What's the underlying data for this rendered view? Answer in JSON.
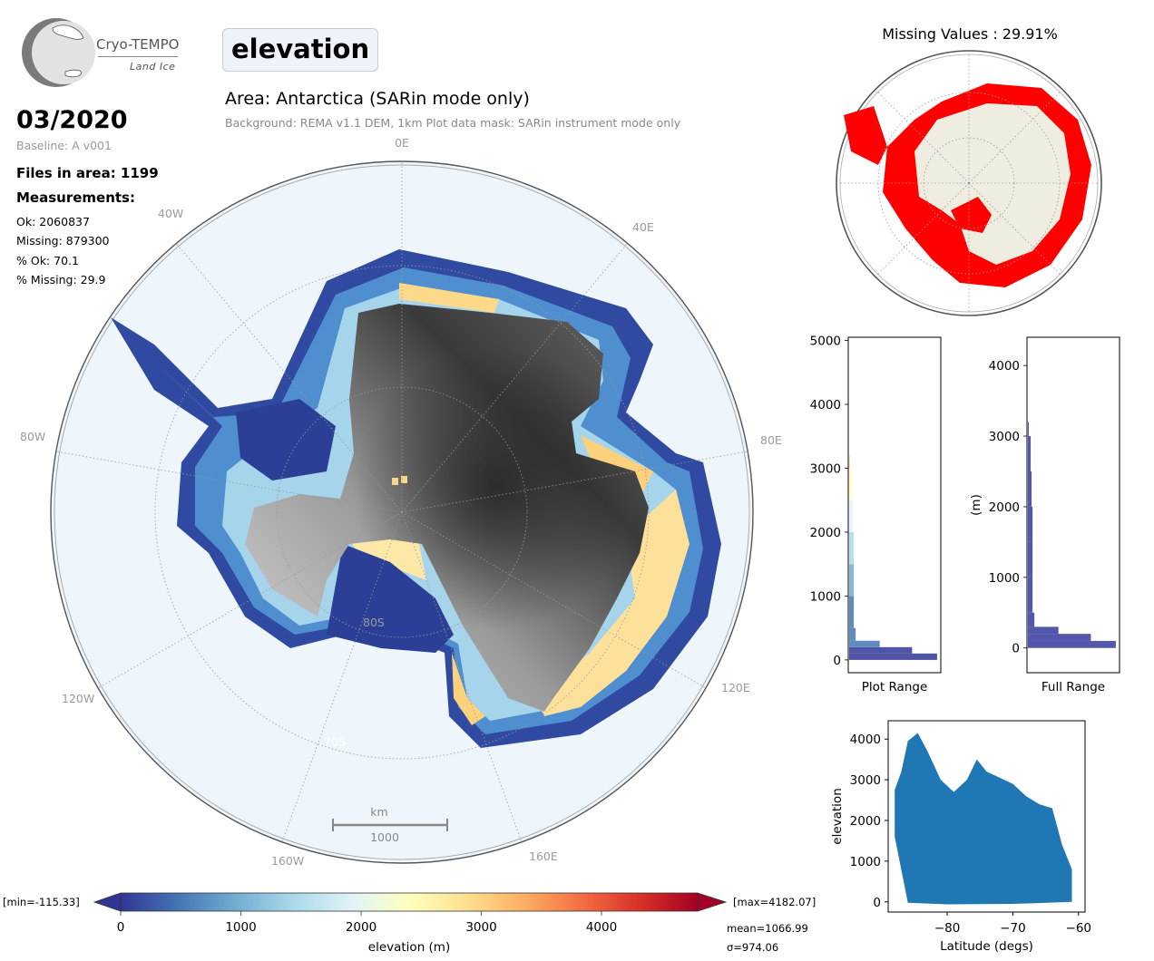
{
  "logo": {
    "title": "Cryo-TEMPO",
    "subtitle": "Land Ice"
  },
  "variable": "elevation",
  "area_title": "Area: Antarctica (SARin mode only)",
  "area_subtitle": "Background: REMA v1.1 DEM, 1km   Plot data mask: SARin instrument mode only",
  "date": "03/2020",
  "baseline": "Baseline: A v001",
  "files": "Files in area: 1199",
  "measurements_header": "Measurements:",
  "stats": {
    "ok": "Ok: 2060837",
    "missing": "Missing: 879300",
    "pct_ok": "% Ok: 70.1",
    "pct_missing": "% Missing: 29.9"
  },
  "missing_title": "Missing Values : 29.91%",
  "map_labels": {
    "lon_0": "0E",
    "lon_40e": "40E",
    "lon_80e": "80E",
    "lon_120e": "120E",
    "lon_160e": "160E",
    "lon_40w": "40W",
    "lon_80w": "80W",
    "lon_120w": "120W",
    "lon_160w": "160W",
    "lat_80s": "80S",
    "lat_70s": "70S"
  },
  "scalebar": {
    "unit": "km",
    "value": "1000"
  },
  "colorbar": {
    "label": "elevation (m)",
    "ticks": [
      "0",
      "1000",
      "2000",
      "3000",
      "4000"
    ],
    "min_label": "[min=-115.33]",
    "max_label": "[max=4182.07]",
    "mean_label": "mean=1066.99",
    "sigma_label": "σ=974.06",
    "colors": [
      "#313695",
      "#4575b4",
      "#74add1",
      "#abd9e9",
      "#e0f3f8",
      "#ffffbf",
      "#fee090",
      "#fdae61",
      "#f46d43",
      "#d73027",
      "#a50026"
    ]
  },
  "chart_data": [
    {
      "type": "histogram",
      "name": "plot-range-histogram",
      "xlabel": "Plot Range",
      "yticks": [
        "0",
        "1000",
        "2000",
        "3000",
        "4000",
        "5000"
      ],
      "ylim": [
        -200,
        5050
      ],
      "bins": [
        {
          "y": 0,
          "count": 0.95
        },
        {
          "y": 100,
          "count": 0.68
        },
        {
          "y": 200,
          "count": 0.33
        },
        {
          "y": 300,
          "count": 0.07
        },
        {
          "y": 500,
          "count": 0.05
        },
        {
          "y": 1000,
          "count": 0.05
        },
        {
          "y": 1500,
          "count": 0.05
        },
        {
          "y": 2000,
          "count": 0.04
        },
        {
          "y": 2500,
          "count": 0.03
        },
        {
          "y": 3000,
          "count": 0.01
        }
      ]
    },
    {
      "type": "histogram",
      "name": "full-range-histogram",
      "xlabel": "Full Range",
      "ylabel": "(m)",
      "yticks": [
        "0",
        "1000",
        "2000",
        "3000",
        "4000"
      ],
      "ylim": [
        -350,
        4400
      ],
      "bins": [
        {
          "y": 0,
          "count": 0.95
        },
        {
          "y": 100,
          "count": 0.68
        },
        {
          "y": 200,
          "count": 0.33
        },
        {
          "y": 300,
          "count": 0.07
        },
        {
          "y": 500,
          "count": 0.05
        },
        {
          "y": 1000,
          "count": 0.05
        },
        {
          "y": 1500,
          "count": 0.05
        },
        {
          "y": 2000,
          "count": 0.04
        },
        {
          "y": 2500,
          "count": 0.03
        },
        {
          "y": 3000,
          "count": 0.01
        }
      ]
    },
    {
      "type": "scatter",
      "name": "elevation-vs-latitude",
      "xlabel": "Latitude (degs)",
      "ylabel": "elevation",
      "xticks": [
        "−80",
        "−70",
        "−60"
      ],
      "yticks": [
        "0",
        "1000",
        "2000",
        "3000",
        "4000"
      ],
      "xlim": [
        -89,
        -59
      ],
      "ylim": [
        -250,
        4450
      ],
      "color": "#1f77b4",
      "envelope_upper": [
        [
          -88,
          2750
        ],
        [
          -87,
          3200
        ],
        [
          -86,
          3950
        ],
        [
          -84.5,
          4150
        ],
        [
          -83,
          3700
        ],
        [
          -81,
          3000
        ],
        [
          -79,
          2700
        ],
        [
          -77,
          3000
        ],
        [
          -75.5,
          3500
        ],
        [
          -74,
          3200
        ],
        [
          -72,
          3050
        ],
        [
          -70,
          2900
        ],
        [
          -68,
          2600
        ],
        [
          -66,
          2400
        ],
        [
          -64,
          2300
        ],
        [
          -62.5,
          1400
        ],
        [
          -61,
          800
        ]
      ],
      "envelope_lower": [
        [
          -61,
          0
        ],
        [
          -70,
          -50
        ],
        [
          -80,
          -60
        ],
        [
          -86,
          -20
        ],
        [
          -88,
          1600
        ]
      ]
    }
  ]
}
